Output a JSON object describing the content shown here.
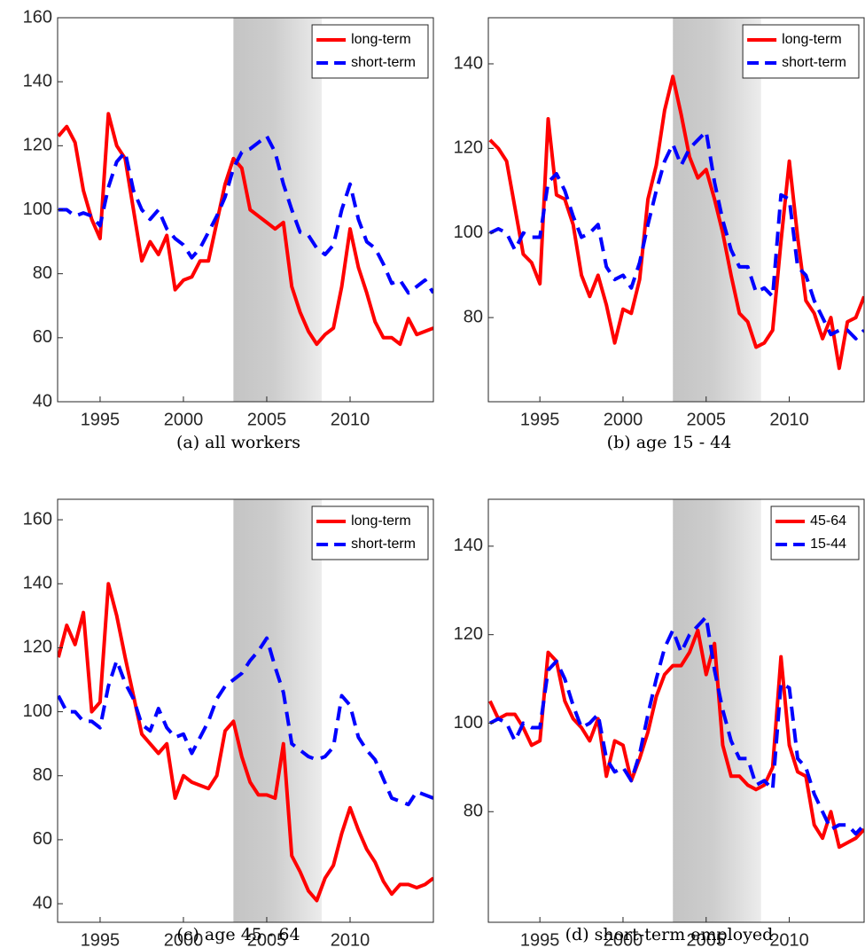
{
  "chart_data": [
    {
      "type": "line",
      "caption": "(a)  all workers",
      "legend": "upper right",
      "grid": false,
      "xlim": [
        1992.45,
        2015
      ],
      "ylim": [
        40,
        160
      ],
      "xticks": [
        1995,
        2000,
        2005,
        2010
      ],
      "yticks": [
        40,
        60,
        80,
        100,
        120,
        140,
        160
      ],
      "shaded_span": [
        2003,
        2008.3
      ],
      "x": [
        1992.5,
        1993,
        1993.5,
        1994,
        1994.5,
        1995,
        1995.5,
        1996,
        1996.5,
        1997,
        1997.5,
        1998,
        1998.5,
        1999,
        1999.5,
        2000,
        2000.5,
        2001,
        2001.5,
        2002,
        2002.5,
        2003,
        2003.5,
        2004,
        2004.5,
        2005,
        2005.5,
        2006,
        2006.5,
        2007,
        2007.5,
        2008,
        2008.5,
        2009,
        2009.5,
        2010,
        2010.5,
        2011,
        2011.5,
        2012,
        2012.5,
        2013,
        2013.5,
        2014,
        2014.5,
        2015
      ],
      "series": [
        {
          "name": "long-term",
          "color": "#ff0000",
          "dash": false,
          "values": [
            123,
            126,
            121,
            106,
            97,
            91,
            130,
            120,
            116,
            100,
            84,
            90,
            86,
            92,
            75,
            78,
            79,
            84,
            84,
            96,
            108,
            116,
            113,
            100,
            98,
            96,
            94,
            96,
            76,
            68,
            62,
            58,
            61,
            63,
            76,
            94,
            82,
            74,
            65,
            60,
            60,
            58,
            66,
            61,
            62,
            63
          ]
        },
        {
          "name": "short-term",
          "color": "#0000ff",
          "dash": true,
          "values": [
            100,
            100,
            98,
            99,
            98,
            95,
            107,
            115,
            118,
            106,
            100,
            97,
            100,
            94,
            91,
            89,
            85,
            88,
            93,
            98,
            104,
            113,
            118,
            119,
            121,
            123,
            118,
            108,
            100,
            93,
            92,
            88,
            86,
            89,
            100,
            108,
            97,
            90,
            88,
            83,
            77,
            78,
            74,
            76,
            78,
            74
          ]
        }
      ]
    },
    {
      "type": "line",
      "caption": "(b)  age 15 - 44",
      "legend": "upper right",
      "grid": false,
      "xlim": [
        1991.9,
        2014.5
      ],
      "ylim": [
        60.1,
        150.9
      ],
      "xticks": [
        1995,
        2000,
        2005,
        2010
      ],
      "yticks": [
        80,
        100,
        120,
        140
      ],
      "shaded_span": [
        2003,
        2008.3
      ],
      "x": [
        1992,
        1992.5,
        1993,
        1993.5,
        1994,
        1994.5,
        1995,
        1995.5,
        1996,
        1996.5,
        1997,
        1997.5,
        1998,
        1998.5,
        1999,
        1999.5,
        2000,
        2000.5,
        2001,
        2001.5,
        2002,
        2002.5,
        2003,
        2003.5,
        2004,
        2004.5,
        2005,
        2005.5,
        2006,
        2006.5,
        2007,
        2007.5,
        2008,
        2008.5,
        2009,
        2009.5,
        2010,
        2010.5,
        2011,
        2011.5,
        2012,
        2012.5,
        2013,
        2013.5,
        2014,
        2014.5
      ],
      "series": [
        {
          "name": "long-term",
          "color": "#ff0000",
          "dash": false,
          "values": [
            122,
            120,
            117,
            106,
            95,
            93,
            88,
            127,
            109,
            108,
            102,
            90,
            85,
            90,
            83,
            74,
            82,
            81,
            89,
            108,
            116,
            129,
            137,
            128,
            118,
            113,
            115,
            108,
            100,
            90,
            81,
            79,
            73,
            74,
            77,
            98,
            117,
            99,
            84,
            81,
            75,
            80,
            68,
            79,
            80,
            85
          ]
        },
        {
          "name": "short-term",
          "color": "#0000ff",
          "dash": true,
          "values": [
            100,
            101,
            100,
            96,
            100,
            99,
            99,
            112,
            114,
            110,
            104,
            99,
            100,
            102,
            92,
            89,
            90,
            87,
            93,
            102,
            110,
            117,
            121,
            116,
            120,
            122,
            124,
            112,
            103,
            96,
            92,
            92,
            86,
            87,
            85,
            109,
            108,
            92,
            90,
            84,
            80,
            76,
            77,
            77,
            75,
            77
          ]
        }
      ]
    },
    {
      "type": "line",
      "caption": "(c)  age 45 - 64",
      "legend": "upper right",
      "grid": false,
      "xlim": [
        1992.45,
        2015
      ],
      "ylim": [
        34.2,
        166.4
      ],
      "xticks": [
        1995,
        2000,
        2005,
        2010
      ],
      "yticks": [
        40,
        60,
        80,
        100,
        120,
        140,
        160
      ],
      "shaded_span": [
        2003,
        2008.3
      ],
      "x": [
        1992.5,
        1993,
        1993.5,
        1994,
        1994.5,
        1995,
        1995.5,
        1996,
        1996.5,
        1997,
        1997.5,
        1998,
        1998.5,
        1999,
        1999.5,
        2000,
        2000.5,
        2001,
        2001.5,
        2002,
        2002.5,
        2003,
        2003.5,
        2004,
        2004.5,
        2005,
        2005.5,
        2006,
        2006.5,
        2007,
        2007.5,
        2008,
        2008.5,
        2009,
        2009.5,
        2010,
        2010.5,
        2011,
        2011.5,
        2012,
        2012.5,
        2013,
        2013.5,
        2014,
        2014.5,
        2015
      ],
      "series": [
        {
          "name": "long-term",
          "color": "#ff0000",
          "dash": false,
          "values": [
            117,
            127,
            121,
            131,
            100,
            103,
            140,
            130,
            117,
            105,
            93,
            90,
            87,
            90,
            73,
            80,
            78,
            77,
            76,
            80,
            94,
            97,
            86,
            78,
            74,
            74,
            73,
            90,
            55,
            50,
            44,
            41,
            48,
            52,
            62,
            70,
            63,
            57,
            53,
            47,
            43,
            46,
            46,
            45,
            46,
            48
          ]
        },
        {
          "name": "short-term",
          "color": "#0000ff",
          "dash": true,
          "values": [
            105,
            100,
            100,
            97,
            97,
            95,
            108,
            116,
            109,
            104,
            96,
            94,
            101,
            95,
            92,
            93,
            87,
            92,
            97,
            104,
            108,
            110,
            112,
            116,
            119,
            123,
            114,
            106,
            90,
            88,
            86,
            85,
            86,
            89,
            105,
            102,
            92,
            88,
            85,
            79,
            73,
            72,
            71,
            75,
            74,
            73
          ]
        }
      ]
    },
    {
      "type": "line",
      "caption": "(d)  short-term employed",
      "legend": "upper right",
      "grid": false,
      "xlim": [
        1991.9,
        2014.5
      ],
      "ylim": [
        55,
        150.6
      ],
      "xticks": [
        1995,
        2000,
        2005,
        2010
      ],
      "yticks": [
        80,
        100,
        120,
        140
      ],
      "shaded_span": [
        2003,
        2008.3
      ],
      "x": [
        1992,
        1992.5,
        1993,
        1993.5,
        1994,
        1994.5,
        1995,
        1995.5,
        1996,
        1996.5,
        1997,
        1997.5,
        1998,
        1998.5,
        1999,
        1999.5,
        2000,
        2000.5,
        2001,
        2001.5,
        2002,
        2002.5,
        2003,
        2003.5,
        2004,
        2004.5,
        2005,
        2005.5,
        2006,
        2006.5,
        2007,
        2007.5,
        2008,
        2008.5,
        2009,
        2009.5,
        2010,
        2010.5,
        2011,
        2011.5,
        2012,
        2012.5,
        2013,
        2013.5,
        2014,
        2014.5
      ],
      "series": [
        {
          "name": "45-64",
          "color": "#ff0000",
          "dash": false,
          "values": [
            105,
            101,
            102,
            102,
            99,
            95,
            96,
            116,
            114,
            105,
            101,
            99,
            96,
            101,
            88,
            96,
            95,
            87,
            92,
            98,
            106,
            111,
            113,
            113,
            116,
            121,
            111,
            118,
            95,
            88,
            88,
            86,
            85,
            86,
            90,
            115,
            95,
            89,
            88,
            77,
            74,
            80,
            72,
            73,
            74,
            76
          ]
        },
        {
          "name": "15-44",
          "color": "#0000ff",
          "dash": true,
          "values": [
            100,
            101,
            100,
            96,
            100,
            99,
            99,
            112,
            114,
            110,
            104,
            99,
            100,
            102,
            92,
            89,
            90,
            87,
            93,
            102,
            110,
            117,
            121,
            116,
            120,
            122,
            124,
            112,
            103,
            96,
            92,
            92,
            86,
            87,
            85,
            109,
            108,
            92,
            90,
            84,
            80,
            76,
            77,
            77,
            75,
            77
          ]
        }
      ]
    }
  ]
}
